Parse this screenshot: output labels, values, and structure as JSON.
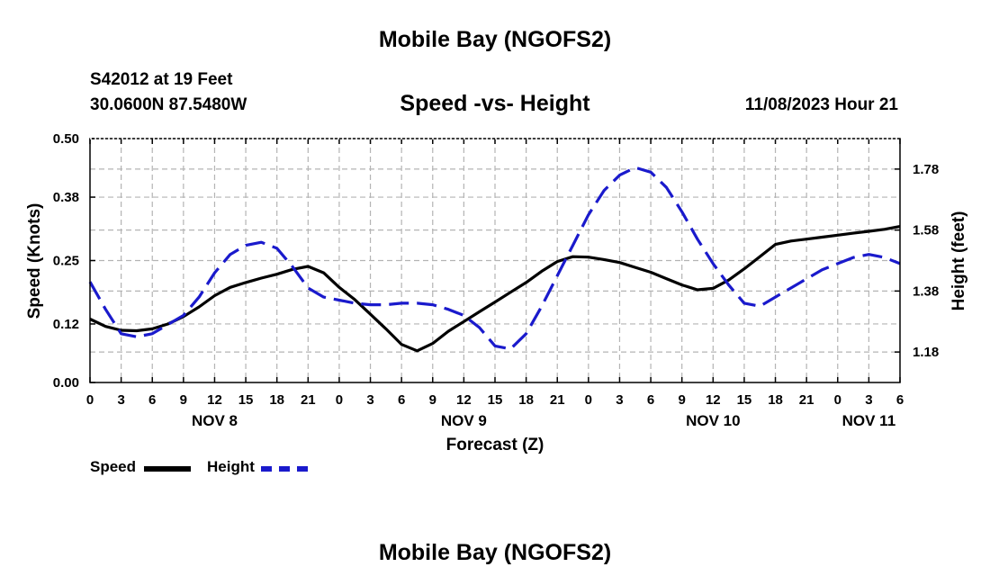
{
  "header": {
    "title": "Mobile Bay (NGOFS2)",
    "station": "S42012 at 19 Feet",
    "coords": "30.0600N  87.5480W",
    "subtitle": "Speed -vs- Height",
    "datetime": "11/08/2023 Hour 21"
  },
  "footer": {
    "title": "Mobile Bay (NGOFS2)"
  },
  "legend": {
    "speed_label": "Speed",
    "height_label": "Height"
  },
  "colors": {
    "speed": "#000000",
    "height": "#1a1acc",
    "grid": "#b4b4b4"
  },
  "chart_data": {
    "type": "line",
    "title": "Speed -vs- Height",
    "xlabel": "Forecast (Z)",
    "ylabel": "Speed (Knots)",
    "y2label": "Height (feet)",
    "x_range_hours": [
      0,
      78
    ],
    "ylim": [
      0,
      0.5
    ],
    "y2lim": [
      1.08,
      1.88
    ],
    "y_ticks": [
      0.0,
      0.12,
      0.25,
      0.38,
      0.5
    ],
    "y_tick_labels": [
      "0.00",
      "0.12",
      "0.25",
      "0.38",
      "0.50"
    ],
    "y2_ticks": [
      1.18,
      1.38,
      1.58,
      1.78
    ],
    "y2_tick_labels": [
      "1.18",
      "1.38",
      "1.58",
      "1.78"
    ],
    "x_tick_labels": [
      "0",
      "3",
      "6",
      "9",
      "12",
      "15",
      "18",
      "21",
      "0",
      "3",
      "6",
      "9",
      "12",
      "15",
      "18",
      "21",
      "0",
      "3",
      "6",
      "9",
      "12",
      "15",
      "18",
      "21",
      "0",
      "3",
      "6"
    ],
    "day_labels": [
      {
        "label": "NOV 8",
        "hour": 12
      },
      {
        "label": "NOV 9",
        "hour": 36
      },
      {
        "label": "NOV 10",
        "hour": 60
      },
      {
        "label": "NOV 11",
        "hour": 75
      }
    ],
    "grid": true,
    "series": [
      {
        "name": "Speed",
        "axis": "left",
        "style": "solid",
        "x": [
          0,
          1.5,
          3,
          4.5,
          6,
          7.5,
          9,
          10.5,
          12,
          13.5,
          15,
          16.5,
          18,
          19.5,
          21,
          22.5,
          24,
          25.5,
          27,
          28.5,
          30,
          31.5,
          33,
          34.5,
          36,
          37.5,
          39,
          40.5,
          42,
          43.5,
          45,
          46.5,
          48,
          49.5,
          51,
          52.5,
          54,
          55.5,
          57,
          58.5,
          60,
          61.5,
          63,
          64.5,
          66,
          67.5,
          69,
          70.5,
          72,
          73.5,
          75,
          76.5,
          78
        ],
        "values": [
          0.13,
          0.115,
          0.107,
          0.106,
          0.11,
          0.12,
          0.135,
          0.155,
          0.178,
          0.195,
          0.205,
          0.214,
          0.222,
          0.232,
          0.238,
          0.225,
          0.195,
          0.17,
          0.14,
          0.11,
          0.078,
          0.065,
          0.08,
          0.105,
          0.125,
          0.145,
          0.165,
          0.185,
          0.205,
          0.228,
          0.248,
          0.258,
          0.257,
          0.252,
          0.246,
          0.236,
          0.226,
          0.213,
          0.2,
          0.19,
          0.193,
          0.21,
          0.233,
          0.258,
          0.283,
          0.29,
          0.294,
          0.298,
          0.302,
          0.306,
          0.31,
          0.314,
          0.32
        ]
      },
      {
        "name": "Height",
        "axis": "right",
        "style": "dashed",
        "x": [
          0,
          1.5,
          3,
          4.5,
          6,
          7.5,
          9,
          10.5,
          12,
          13.5,
          15,
          16.5,
          18,
          19.5,
          21,
          22.5,
          24,
          25.5,
          27,
          28.5,
          30,
          31.5,
          33,
          34.5,
          36,
          37.5,
          39,
          40.5,
          42,
          43.5,
          45,
          46.5,
          48,
          49.5,
          51,
          52.5,
          54,
          55.5,
          57,
          58.5,
          60,
          61.5,
          63,
          64.5,
          66,
          67.5,
          69,
          70.5,
          72,
          73.5,
          75,
          76.5,
          78
        ],
        "values": [
          1.41,
          1.32,
          1.24,
          1.23,
          1.24,
          1.27,
          1.3,
          1.36,
          1.44,
          1.5,
          1.53,
          1.54,
          1.52,
          1.46,
          1.39,
          1.36,
          1.35,
          1.34,
          1.335,
          1.335,
          1.34,
          1.34,
          1.335,
          1.32,
          1.3,
          1.26,
          1.2,
          1.19,
          1.24,
          1.33,
          1.43,
          1.53,
          1.63,
          1.71,
          1.76,
          1.785,
          1.77,
          1.72,
          1.64,
          1.55,
          1.47,
          1.4,
          1.34,
          1.33,
          1.36,
          1.39,
          1.42,
          1.45,
          1.47,
          1.49,
          1.5,
          1.49,
          1.47
        ]
      }
    ]
  }
}
